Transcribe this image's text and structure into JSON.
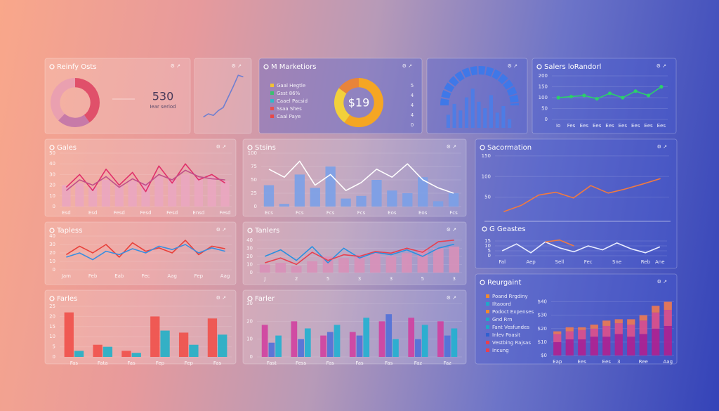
{
  "chart_data": [
    {
      "type": "pie",
      "title": "Reinfy Osts",
      "values": [
        40,
        22,
        38
      ],
      "colors": [
        "#e0506a",
        "#c77aa8",
        "#eaa0b0"
      ],
      "kpi_value": 530,
      "kpi_label": "Iear seriod"
    },
    {
      "type": "line",
      "series": [
        {
          "color": "#6f7fd0",
          "values": [
            10,
            14,
            12,
            18,
            22,
            35,
            48,
            62,
            60
          ]
        }
      ],
      "ylim": [
        0,
        70
      ]
    },
    {
      "type": "pie",
      "title": "M Marketiors",
      "values": [
        60,
        25,
        15
      ],
      "colors": [
        "#f5a623",
        "#f2d03b",
        "#e8843a"
      ],
      "center_label": "$19",
      "legend": [
        {
          "label": "Gaal Hegtle",
          "color": "#f2c232"
        },
        {
          "label": "Gsst 86%",
          "color": "#3cc070"
        },
        {
          "label": "Caael Pacsid",
          "color": "#30b8c8"
        },
        {
          "label": "Ssaa Shes",
          "color": "#e85050"
        },
        {
          "label": "Caal Paye",
          "color": "#e84848"
        }
      ],
      "side_values": [
        5,
        4,
        4,
        4,
        0
      ]
    },
    {
      "type": "bar",
      "series": [
        {
          "color": "#4a7de8",
          "values": [
            30,
            55,
            40,
            70,
            90,
            60,
            45,
            75,
            35,
            50,
            20
          ]
        }
      ],
      "ylim": [
        0,
        100
      ]
    },
    {
      "type": "line",
      "title": "Salers loRandorl",
      "markers": true,
      "categories": [
        "Io",
        "Fes",
        "Ees",
        "Ees",
        "Ees",
        "Ees",
        "Ees",
        "Ees",
        "Ees"
      ],
      "series": [
        {
          "color": "#2bd06a",
          "values": [
            100,
            105,
            110,
            95,
            120,
            100,
            130,
            110,
            150
          ]
        }
      ],
      "ylim": [
        0,
        200
      ],
      "yticks": [
        0,
        50,
        100,
        150,
        200
      ]
    },
    {
      "type": "line",
      "title": "Gales",
      "categories": [
        "Esd",
        null,
        "Esd",
        null,
        "Fesd",
        null,
        "Fesd",
        null,
        "Fesd",
        null,
        "Ensd",
        null,
        "Fesd"
      ],
      "series": [
        {
          "type": "bar",
          "color": "#eaa6c0",
          "values": [
            20,
            22,
            18,
            25,
            20,
            24,
            22,
            28,
            26,
            30,
            27,
            28,
            24
          ]
        },
        {
          "color": "#e0306a",
          "values": [
            18,
            30,
            15,
            35,
            20,
            32,
            14,
            38,
            22,
            40,
            25,
            30,
            22
          ]
        },
        {
          "color": "#c0508a",
          "values": [
            15,
            25,
            20,
            28,
            18,
            26,
            20,
            30,
            25,
            34,
            28,
            26,
            25
          ]
        }
      ],
      "ylim": [
        0,
        50
      ],
      "yticks": [
        0,
        10,
        20,
        30,
        40,
        50
      ]
    },
    {
      "type": "line",
      "title": "Stsins",
      "categories": [
        "Ecs",
        null,
        "Fcs",
        null,
        "Fcs",
        null,
        "Fcs",
        null,
        "Eos",
        null,
        "Eos",
        null,
        "Fcs"
      ],
      "series": [
        {
          "type": "bar",
          "color": "#7aa0e8",
          "values": [
            40,
            5,
            60,
            35,
            75,
            15,
            20,
            50,
            30,
            25,
            55,
            10,
            25
          ]
        },
        {
          "color": "#ffffff",
          "values": [
            70,
            55,
            85,
            40,
            60,
            30,
            45,
            70,
            55,
            80,
            50,
            35,
            25
          ]
        }
      ],
      "ylim": [
        0,
        100
      ],
      "yticks": [
        0,
        25,
        50,
        75,
        100
      ]
    },
    {
      "type": "line",
      "title": "Sacormation",
      "series": [
        {
          "color": "#f07a40",
          "values": [
            15,
            30,
            55,
            62,
            48,
            78,
            60,
            70,
            82,
            95
          ]
        }
      ],
      "ylim": [
        0,
        160
      ],
      "yticks": [
        50,
        100,
        150
      ]
    },
    {
      "type": "line",
      "title": "G Geastes",
      "categories": [
        "Fal",
        null,
        "Aep",
        null,
        "Sell",
        null,
        "Fec",
        null,
        "Sne",
        null,
        "Reb",
        "Ane"
      ],
      "series": [
        {
          "color": "#e8ecff",
          "values": [
            5,
            12,
            3,
            14,
            8,
            4,
            10,
            6,
            13,
            7,
            3,
            9
          ]
        },
        {
          "color": "#f07a40",
          "values": [
            null,
            null,
            null,
            14,
            16,
            10,
            null,
            null,
            null,
            null,
            null,
            null
          ]
        }
      ],
      "ylim": [
        0,
        20
      ],
      "yticks": [
        0,
        5,
        10,
        15
      ]
    },
    {
      "type": "line",
      "title": "Tapless",
      "categories": [
        "Jam",
        null,
        "Feb",
        null,
        "Eab",
        null,
        "Fec",
        null,
        "Aag",
        null,
        "Fep",
        null,
        "Aag"
      ],
      "series": [
        {
          "color": "#e8403a",
          "values": [
            18,
            28,
            20,
            30,
            15,
            32,
            22,
            26,
            20,
            35,
            18,
            28,
            25
          ]
        },
        {
          "color": "#3a8ee0",
          "values": [
            15,
            20,
            12,
            22,
            18,
            25,
            20,
            28,
            24,
            30,
            20,
            26,
            22
          ]
        }
      ],
      "ylim": [
        0,
        40
      ],
      "yticks": [
        0,
        10,
        20,
        30,
        40
      ]
    },
    {
      "type": "line",
      "title": "Tanlers",
      "categories": [
        "J",
        null,
        "2",
        null,
        "5",
        null,
        "3",
        null,
        "3",
        null,
        "5",
        null,
        "3"
      ],
      "series": [
        {
          "type": "bar",
          "color": "#d890b8",
          "values": [
            10,
            12,
            8,
            14,
            20,
            18,
            22,
            25,
            20,
            24,
            28,
            30,
            32
          ]
        },
        {
          "color": "#2a90e0",
          "values": [
            20,
            28,
            15,
            32,
            12,
            30,
            18,
            25,
            22,
            28,
            20,
            30,
            35
          ]
        },
        {
          "color": "#e84050",
          "values": [
            12,
            18,
            10,
            25,
            15,
            22,
            20,
            26,
            24,
            30,
            25,
            38,
            40
          ]
        }
      ],
      "ylim": [
        0,
        45
      ],
      "yticks": [
        0,
        10,
        20,
        30,
        40
      ]
    },
    {
      "type": "bar",
      "title": "Farles",
      "categories": [
        "Fas",
        "Fata",
        "Fas",
        "Fep",
        "Fep",
        "Fas"
      ],
      "series": [
        {
          "color": "#f0504a",
          "values": [
            22,
            6,
            3,
            20,
            12,
            19
          ]
        },
        {
          "color": "#20b0c8",
          "values": [
            3,
            5,
            2,
            13,
            6,
            11
          ]
        }
      ],
      "ylim": [
        0,
        25
      ],
      "yticks": [
        0,
        5,
        10,
        15,
        20,
        25
      ]
    },
    {
      "type": "bar",
      "title": "Farler",
      "categories": [
        "Fast",
        "Fess",
        "Fas",
        "Fas",
        "Fas",
        "Faz",
        "Faz"
      ],
      "series": [
        {
          "color": "#d040a0",
          "values": [
            18,
            20,
            12,
            14,
            20,
            22,
            20
          ]
        },
        {
          "color": "#5070d8",
          "values": [
            8,
            10,
            14,
            12,
            24,
            10,
            12
          ]
        },
        {
          "color": "#20b0d0",
          "values": [
            12,
            16,
            18,
            22,
            10,
            18,
            16
          ]
        }
      ],
      "ylim": [
        0,
        30
      ],
      "yticks": [
        0,
        10,
        20,
        30
      ]
    },
    {
      "type": "bar",
      "stacked": true,
      "title": "Reurgaint",
      "categories": [
        "Eap",
        null,
        "Ees",
        null,
        "Ees",
        "3",
        null,
        "Ree",
        null,
        "Aag"
      ],
      "series": [
        {
          "color": "#b02090",
          "values": [
            10,
            12,
            12,
            14,
            14,
            16,
            14,
            16,
            20,
            22
          ]
        },
        {
          "color": "#e0508a",
          "values": [
            6,
            6,
            7,
            6,
            8,
            8,
            9,
            10,
            12,
            12
          ]
        },
        {
          "color": "#f07a50",
          "values": [
            2,
            3,
            2,
            3,
            4,
            3,
            4,
            4,
            5,
            6
          ]
        }
      ],
      "ylim": [
        0,
        45
      ],
      "yticks": [
        {
          "value": 0,
          "label": "$0"
        },
        {
          "value": 10,
          "label": "$10"
        },
        {
          "value": 20,
          "label": "$20"
        },
        {
          "value": 30,
          "label": "$30"
        },
        {
          "value": 40,
          "label": "$40"
        }
      ],
      "legend": [
        {
          "label": "Poand Rrgdiny",
          "color": "#f08a30"
        },
        {
          "label": "Iltaoord",
          "color": "#20a8c8"
        },
        {
          "label": "Podoct Expenses",
          "color": "#f08a30"
        },
        {
          "label": "Gnd Rrn",
          "color": "#20a8c8"
        },
        {
          "label": "Fant Vesfundes",
          "color": "#20a8c8"
        },
        {
          "label": "Inlev Poasit",
          "color": "#3060d0"
        },
        {
          "label": "Vestbing Rajsas",
          "color": "#e84050"
        },
        {
          "label": "Incung",
          "color": "#e84050"
        }
      ]
    }
  ]
}
